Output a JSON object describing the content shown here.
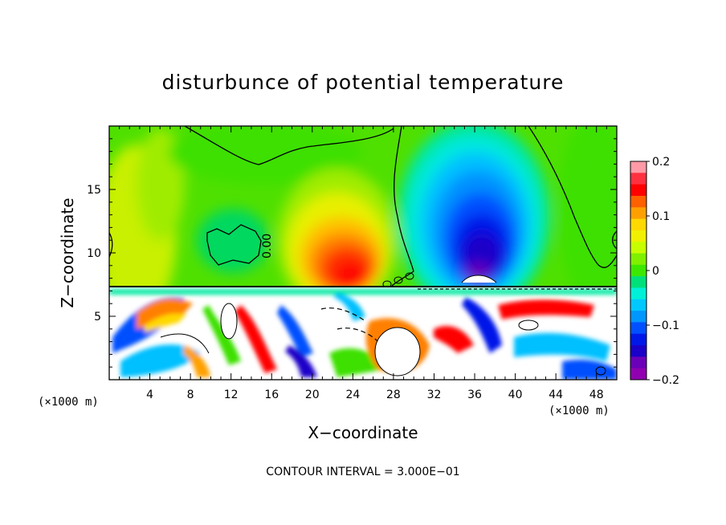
{
  "chart_data": {
    "type": "heatmap",
    "title": "disturbunce of potential temperature",
    "xlabel": "X−coordinate",
    "ylabel": "Z−coordinate",
    "x_unit_label": "(×1000 m)",
    "z_unit_label": "(×1000 m)",
    "xlim": [
      0,
      50
    ],
    "ylim": [
      0,
      20
    ],
    "x_ticks": [
      4,
      8,
      12,
      16,
      20,
      24,
      28,
      32,
      36,
      40,
      44,
      48
    ],
    "y_ticks": [
      5,
      10,
      15
    ],
    "colorbar": {
      "range": [
        -0.2,
        0.2
      ],
      "tick_labels": [
        "0.2",
        "0.1",
        "0",
        "−0.1",
        "−0.2"
      ],
      "tick_values": [
        0.2,
        0.1,
        0,
        -0.1,
        -0.2
      ],
      "colors": [
        "#ff9aa6",
        "#ff3040",
        "#ff0000",
        "#ff6000",
        "#ffa000",
        "#ffd800",
        "#f0f000",
        "#c8ff00",
        "#7ef000",
        "#3ce800",
        "#00e07a",
        "#00f0d8",
        "#00c8ff",
        "#0096ff",
        "#0050ff",
        "#0018e8",
        "#1a00c8",
        "#6a00b8",
        "#9000b0"
      ]
    },
    "contour_interval_label": "CONTOUR INTERVAL = 3.000E−01",
    "contour_labels": [
      "0.00"
    ],
    "regions": [
      {
        "feature": "warm anomaly",
        "x_range": [
          19,
          27
        ],
        "z_range": [
          7.5,
          12
        ],
        "value": 0.12
      },
      {
        "feature": "cold anomaly",
        "x_range": [
          33,
          41
        ],
        "z_range": [
          7.5,
          17
        ],
        "value": -0.18
      },
      {
        "feature": "near-neutral background",
        "value": 0.0
      },
      {
        "feature": "turbulent lower layer",
        "z_range": [
          0,
          7.2
        ],
        "value_range": [
          -0.2,
          0.2
        ]
      }
    ]
  }
}
